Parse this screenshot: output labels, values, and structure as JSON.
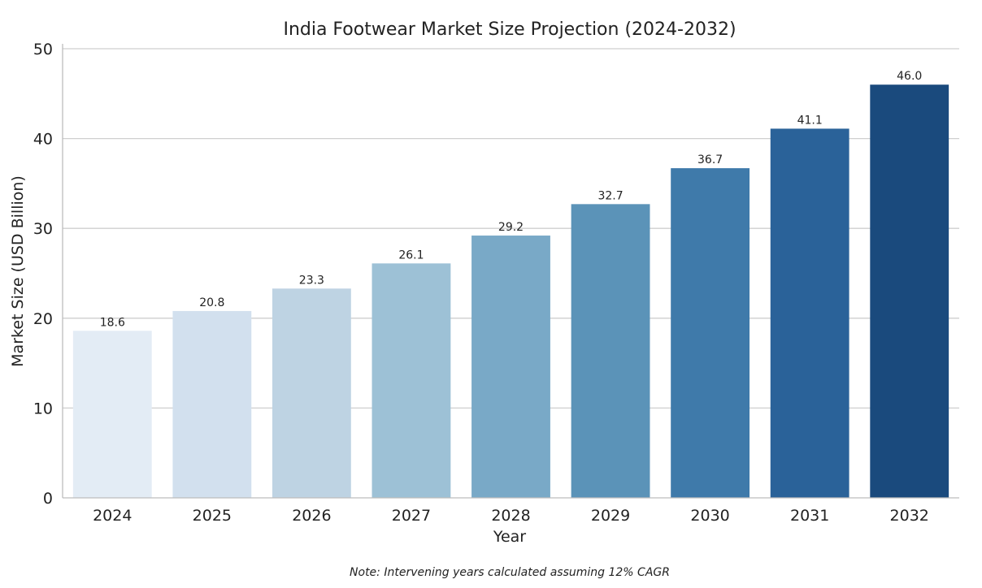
{
  "chart_data": {
    "type": "bar",
    "title": "India Footwear Market Size Projection (2024-2032)",
    "xlabel": "Year",
    "ylabel": "Market Size (USD Billion)",
    "categories": [
      "2024",
      "2025",
      "2026",
      "2027",
      "2028",
      "2029",
      "2030",
      "2031",
      "2032"
    ],
    "values": [
      18.6,
      20.8,
      23.3,
      26.1,
      29.2,
      32.7,
      36.7,
      41.1,
      46.0
    ],
    "value_labels": [
      "18.6",
      "20.8",
      "23.3",
      "26.1",
      "29.2",
      "32.7",
      "36.7",
      "41.1",
      "46.0"
    ],
    "bar_colors": [
      "#e3ecf5",
      "#d2e0ee",
      "#bed3e3",
      "#9dc1d6",
      "#79a9c7",
      "#5b93b8",
      "#3f7aaa",
      "#2a6299",
      "#1a4a7d"
    ],
    "ylim": [
      0,
      50
    ],
    "yticks": [
      0,
      10,
      20,
      30,
      40,
      50
    ],
    "ytick_labels": [
      "0",
      "10",
      "20",
      "30",
      "40",
      "50"
    ],
    "grid": "horizontal",
    "note": "Note: Intervening years calculated assuming 12% CAGR"
  }
}
